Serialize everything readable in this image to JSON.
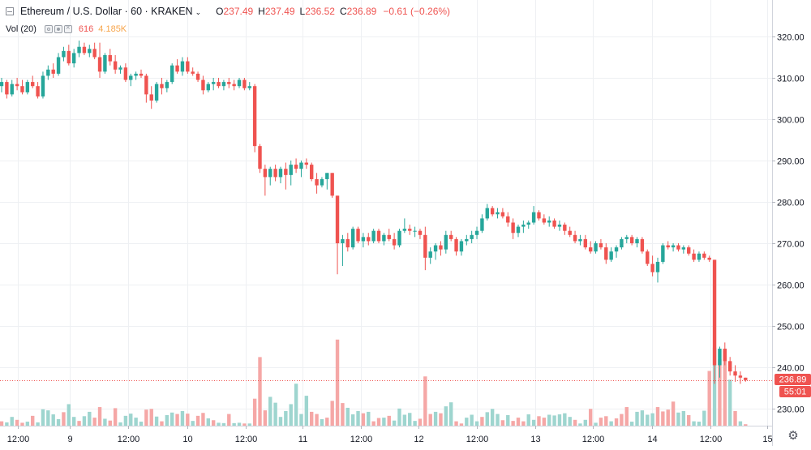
{
  "legend": {
    "symbol_title": "Ethereum / U.S. Dollar · 60 · KRAKEN",
    "open_label": "O",
    "open": "237.49",
    "high_label": "H",
    "high": "237.49",
    "low_label": "L",
    "low": "236.52",
    "close_label": "C",
    "close": "236.89",
    "change": "−0.61 (−0.26%)"
  },
  "volume_legend": {
    "label": "Vol (20)",
    "value": "616",
    "ma": "4.185K"
  },
  "price_axis": {
    "ticks": [
      "320.00",
      "310.00",
      "300.00",
      "290.00",
      "280.00",
      "270.00",
      "260.00",
      "250.00",
      "240.00",
      "230.00"
    ],
    "last_price_label": "236.89",
    "countdown_label": "55:01"
  },
  "time_axis": {
    "ticks": [
      "12:00",
      "9",
      "12:00",
      "10",
      "12:00",
      "11",
      "12:00",
      "12",
      "12:00",
      "13",
      "12:00",
      "14",
      "12:00",
      "15"
    ]
  },
  "colors": {
    "up": "#26a69a",
    "down": "#ef5350",
    "up_vol": "#9ed5cf",
    "down_vol": "#f5a7a6",
    "grid": "#eef0f3",
    "last_price_line": "#ef5350"
  },
  "chart_data": {
    "type": "candlestick",
    "timeframe": "60",
    "ylim": [
      225,
      330
    ],
    "candles": [
      [
        308,
        310,
        306.5,
        309
      ],
      [
        309,
        309.5,
        305,
        306
      ],
      [
        306,
        309.5,
        305.5,
        308.5
      ],
      [
        308.5,
        310,
        307,
        308
      ],
      [
        308,
        309.5,
        306,
        306.5
      ],
      [
        306.5,
        309.5,
        306,
        309
      ],
      [
        309,
        310.5,
        307.5,
        308
      ],
      [
        308,
        309,
        305,
        305.5
      ],
      [
        305.5,
        311.5,
        305,
        310.5
      ],
      [
        310.5,
        313,
        309.5,
        312
      ],
      [
        312,
        313.5,
        310,
        311
      ],
      [
        311,
        316,
        310.5,
        315
      ],
      [
        315,
        317.5,
        314,
        316.5
      ],
      [
        316.5,
        318,
        313,
        313.5
      ],
      [
        313.5,
        317,
        312.5,
        316
      ],
      [
        316,
        319,
        315,
        317.5
      ],
      [
        317.5,
        318.5,
        315.5,
        316
      ],
      [
        316,
        318,
        315,
        317
      ],
      [
        317,
        318.5,
        314.5,
        315
      ],
      [
        315,
        318.5,
        310,
        311.5
      ],
      [
        311.5,
        316,
        311,
        315.5
      ],
      [
        315.5,
        317,
        313,
        314
      ],
      [
        314,
        315.5,
        311,
        312
      ],
      [
        312,
        313,
        311,
        312.5
      ],
      [
        312.5,
        313.5,
        309,
        309.5
      ],
      [
        309.5,
        311,
        308,
        310.5
      ],
      [
        310.5,
        311.5,
        309.5,
        311
      ],
      [
        311,
        312,
        310,
        310.5
      ],
      [
        310.5,
        311,
        304,
        306
      ],
      [
        306,
        308,
        302.5,
        304.5
      ],
      [
        304.5,
        309,
        304,
        308.5
      ],
      [
        308.5,
        310,
        306,
        307.5
      ],
      [
        307.5,
        309.5,
        306.5,
        309
      ],
      [
        309,
        313.5,
        308.5,
        313
      ],
      [
        313,
        314.5,
        311,
        311.5
      ],
      [
        311.5,
        315,
        310.5,
        314
      ],
      [
        314,
        315,
        311,
        311.5
      ],
      [
        311.5,
        312.5,
        310.5,
        311
      ],
      [
        311,
        311.5,
        309,
        309.5
      ],
      [
        309.5,
        310.5,
        306,
        307
      ],
      [
        307,
        309,
        306.5,
        308.5
      ],
      [
        308.5,
        310,
        307,
        309
      ],
      [
        309,
        310,
        307.5,
        308
      ],
      [
        308,
        309.5,
        307,
        309
      ],
      [
        309,
        310,
        307.5,
        308.5
      ],
      [
        308.5,
        309.5,
        307,
        308
      ],
      [
        308,
        310,
        307.5,
        309.5
      ],
      [
        309.5,
        310,
        307,
        307.5
      ],
      [
        307.5,
        309,
        307,
        308
      ],
      [
        308,
        308.5,
        292,
        293.5
      ],
      [
        293.5,
        294,
        287,
        288
      ],
      [
        288,
        289,
        281.5,
        286
      ],
      [
        286,
        288.5,
        284,
        288
      ],
      [
        288,
        289,
        285,
        286
      ],
      [
        286,
        288.5,
        284.5,
        288
      ],
      [
        288,
        289.5,
        283,
        286.5
      ],
      [
        286.5,
        290,
        284,
        289
      ],
      [
        289,
        290.5,
        287,
        288
      ],
      [
        288,
        290,
        286,
        289.5
      ],
      [
        289.5,
        290.5,
        288,
        289
      ],
      [
        289,
        289.5,
        285,
        285.5
      ],
      [
        285.5,
        287,
        282,
        284
      ],
      [
        284,
        286,
        283.5,
        285.5
      ],
      [
        285.5,
        287,
        283,
        287
      ],
      [
        287,
        287,
        281,
        281.5
      ],
      [
        281.5,
        281.5,
        262.5,
        270
      ],
      [
        270,
        272,
        264.5,
        271
      ],
      [
        271,
        272.5,
        268,
        269
      ],
      [
        269,
        274,
        268.5,
        273.5
      ],
      [
        273.5,
        274,
        270,
        270.5
      ],
      [
        270.5,
        272.5,
        269,
        271.5
      ],
      [
        271.5,
        272.5,
        269.5,
        270.5
      ],
      [
        270.5,
        273.5,
        270,
        273
      ],
      [
        273,
        273.5,
        270,
        270.5
      ],
      [
        270.5,
        272.5,
        269.5,
        272
      ],
      [
        272,
        273.5,
        270.5,
        271
      ],
      [
        271,
        272.5,
        268.5,
        269.5
      ],
      [
        269.5,
        273.5,
        269,
        273
      ],
      [
        273,
        276,
        272.5,
        273.5
      ],
      [
        273.5,
        274.5,
        272,
        273
      ],
      [
        273,
        274,
        271.5,
        273
      ],
      [
        273,
        273.5,
        271,
        272
      ],
      [
        272,
        274,
        263.5,
        266.5
      ],
      [
        266.5,
        269,
        265,
        268
      ],
      [
        268,
        270,
        266,
        269.5
      ],
      [
        269.5,
        270.5,
        267,
        268.5
      ],
      [
        268.5,
        273,
        267.5,
        272
      ],
      [
        272,
        273,
        270.5,
        271
      ],
      [
        271,
        271.5,
        267,
        268
      ],
      [
        268,
        271,
        267,
        270.5
      ],
      [
        270.5,
        272,
        269.5,
        271
      ],
      [
        271,
        273,
        270,
        272
      ],
      [
        272,
        274,
        271,
        273
      ],
      [
        273,
        277,
        272.5,
        276
      ],
      [
        276,
        279.5,
        275.5,
        278.5
      ],
      [
        278.5,
        279,
        276.5,
        277
      ],
      [
        277,
        278.5,
        276,
        277.5
      ],
      [
        277.5,
        278.5,
        276,
        276.5
      ],
      [
        276.5,
        277.5,
        274,
        275
      ],
      [
        275,
        276,
        271,
        272.5
      ],
      [
        272.5,
        274.5,
        271.5,
        274
      ],
      [
        274,
        275.5,
        272.5,
        274.5
      ],
      [
        274.5,
        275.5,
        273.5,
        275
      ],
      [
        275,
        279,
        274.5,
        277.5
      ],
      [
        277.5,
        278,
        275.5,
        276
      ],
      [
        276,
        277,
        274.5,
        275
      ],
      [
        275,
        276.5,
        274,
        275.5
      ],
      [
        275.5,
        276,
        273.5,
        274
      ],
      [
        274,
        275.5,
        273,
        274.5
      ],
      [
        274.5,
        275,
        272,
        273
      ],
      [
        273,
        274,
        271.5,
        272
      ],
      [
        272,
        273,
        270,
        270.5
      ],
      [
        270.5,
        272,
        269.5,
        271
      ],
      [
        271,
        272,
        268.5,
        269
      ],
      [
        269,
        270.5,
        267.5,
        268
      ],
      [
        268,
        270.5,
        267.5,
        270
      ],
      [
        270,
        271,
        268.5,
        269
      ],
      [
        269,
        270,
        265,
        266
      ],
      [
        266,
        269,
        265.5,
        268
      ],
      [
        268,
        269.5,
        266.5,
        269
      ],
      [
        269,
        271.5,
        268.5,
        271
      ],
      [
        271,
        272,
        270,
        271.5
      ],
      [
        271.5,
        272,
        269.5,
        270
      ],
      [
        270,
        271.5,
        269,
        271
      ],
      [
        271,
        271.5,
        267.5,
        268
      ],
      [
        268,
        268.5,
        264.5,
        265
      ],
      [
        265,
        267,
        262,
        263
      ],
      [
        263,
        266.5,
        260.5,
        265.5
      ],
      [
        265.5,
        270,
        265,
        269.5
      ],
      [
        269.5,
        270.5,
        268.5,
        269
      ],
      [
        269,
        270,
        268,
        269.5
      ],
      [
        269.5,
        270,
        268,
        268.5
      ],
      [
        268.5,
        269.5,
        267.5,
        269
      ],
      [
        269,
        269.5,
        267,
        267.5
      ],
      [
        267.5,
        268.5,
        265.5,
        266
      ],
      [
        266,
        268,
        265.5,
        267.5
      ],
      [
        267.5,
        268,
        266,
        266.5
      ],
      [
        266.5,
        267,
        265.5,
        266
      ],
      [
        266,
        266,
        236,
        240.5
      ],
      [
        240.5,
        245,
        237.5,
        244.5
      ],
      [
        244.5,
        246,
        240.5,
        241.5
      ],
      [
        241.5,
        242.5,
        238,
        239
      ],
      [
        239,
        240.5,
        236.5,
        238
      ],
      [
        238,
        239,
        236,
        237.5
      ],
      [
        237.49,
        237.49,
        236.52,
        236.89
      ]
    ],
    "volumes": [
      [
        1.2,
        0
      ],
      [
        0.9,
        1
      ],
      [
        2.4,
        1
      ],
      [
        1.6,
        0
      ],
      [
        0.8,
        0
      ],
      [
        1.1,
        1
      ],
      [
        2.7,
        0
      ],
      [
        0.9,
        1
      ],
      [
        4.5,
        1
      ],
      [
        4.2,
        1
      ],
      [
        3.1,
        1
      ],
      [
        1.8,
        1
      ],
      [
        3.7,
        0
      ],
      [
        5.9,
        1
      ],
      [
        2.4,
        1
      ],
      [
        1.3,
        0
      ],
      [
        2.6,
        1
      ],
      [
        3.8,
        1
      ],
      [
        2.2,
        0
      ],
      [
        5.1,
        0
      ],
      [
        1.9,
        1
      ],
      [
        1.4,
        0
      ],
      [
        4.8,
        0
      ],
      [
        0.9,
        1
      ],
      [
        2.7,
        1
      ],
      [
        3.3,
        1
      ],
      [
        2.2,
        1
      ],
      [
        1.1,
        1
      ],
      [
        4.4,
        0
      ],
      [
        4.6,
        0
      ],
      [
        2.5,
        1
      ],
      [
        1.2,
        0
      ],
      [
        2.9,
        1
      ],
      [
        3.6,
        1
      ],
      [
        3.2,
        0
      ],
      [
        4.0,
        1
      ],
      [
        3.3,
        0
      ],
      [
        1.3,
        1
      ],
      [
        2.7,
        0
      ],
      [
        3.5,
        0
      ],
      [
        2.0,
        1
      ],
      [
        1.5,
        0
      ],
      [
        0.8,
        1
      ],
      [
        0.7,
        1
      ],
      [
        3.2,
        0
      ],
      [
        0.7,
        1
      ],
      [
        0.8,
        1
      ],
      [
        0.6,
        0
      ],
      [
        0.6,
        1
      ],
      [
        7.4,
        0
      ],
      [
        18.8,
        0
      ],
      [
        4.2,
        0
      ],
      [
        7.9,
        1
      ],
      [
        6.3,
        1
      ],
      [
        2.4,
        1
      ],
      [
        4.0,
        1
      ],
      [
        5.9,
        1
      ],
      [
        11.5,
        1
      ],
      [
        3.2,
        1
      ],
      [
        8.2,
        1
      ],
      [
        3.8,
        0
      ],
      [
        3.2,
        0
      ],
      [
        1.8,
        1
      ],
      [
        2.2,
        0
      ],
      [
        6.8,
        0
      ],
      [
        23.6,
        0
      ],
      [
        6.2,
        0
      ],
      [
        4.9,
        1
      ],
      [
        3.1,
        1
      ],
      [
        4.0,
        1
      ],
      [
        3.4,
        0
      ],
      [
        3.8,
        1
      ],
      [
        1.2,
        0
      ],
      [
        2.1,
        0
      ],
      [
        2.2,
        1
      ],
      [
        2.7,
        0
      ],
      [
        1.4,
        1
      ],
      [
        4.7,
        1
      ],
      [
        3.0,
        1
      ],
      [
        3.5,
        1
      ],
      [
        1.3,
        1
      ],
      [
        1.9,
        0
      ],
      [
        13.5,
        0
      ],
      [
        3.2,
        0
      ],
      [
        3.8,
        1
      ],
      [
        3.4,
        0
      ],
      [
        5.3,
        1
      ],
      [
        6.4,
        1
      ],
      [
        1.2,
        0
      ],
      [
        0.6,
        0
      ],
      [
        2.2,
        1
      ],
      [
        3.0,
        1
      ],
      [
        1.2,
        1
      ],
      [
        2.4,
        0
      ],
      [
        3.7,
        1
      ],
      [
        4.6,
        1
      ],
      [
        3.2,
        1
      ],
      [
        1.5,
        0
      ],
      [
        2.9,
        1
      ],
      [
        1.3,
        0
      ],
      [
        2.2,
        0
      ],
      [
        1.2,
        0
      ],
      [
        3.1,
        1
      ],
      [
        1.6,
        1
      ],
      [
        2.6,
        0
      ],
      [
        2.2,
        0
      ],
      [
        3.0,
        1
      ],
      [
        2.8,
        1
      ],
      [
        3.1,
        1
      ],
      [
        3.4,
        1
      ],
      [
        2.4,
        1
      ],
      [
        1.6,
        0
      ],
      [
        0.6,
        1
      ],
      [
        1.6,
        1
      ],
      [
        4.6,
        0
      ],
      [
        0.8,
        1
      ],
      [
        2.2,
        0
      ],
      [
        2.6,
        0
      ],
      [
        1.2,
        1
      ],
      [
        2.0,
        0
      ],
      [
        3.2,
        0
      ],
      [
        5.1,
        0
      ],
      [
        1.1,
        1
      ],
      [
        3.8,
        1
      ],
      [
        4.2,
        1
      ],
      [
        3.0,
        1
      ],
      [
        3.4,
        1
      ],
      [
        5.1,
        0
      ],
      [
        3.9,
        0
      ],
      [
        4.4,
        0
      ],
      [
        6.6,
        0
      ],
      [
        3.6,
        1
      ],
      [
        4.0,
        1
      ],
      [
        2.9,
        0
      ],
      [
        1.2,
        1
      ],
      [
        1.1,
        1
      ],
      [
        4.1,
        1
      ],
      [
        15.0,
        0
      ],
      [
        21.4,
        1
      ],
      [
        18.2,
        0
      ],
      [
        20.5,
        0
      ],
      [
        12.6,
        1
      ],
      [
        4.0,
        0
      ],
      [
        1.2,
        1
      ],
      [
        0.4,
        0
      ]
    ]
  }
}
